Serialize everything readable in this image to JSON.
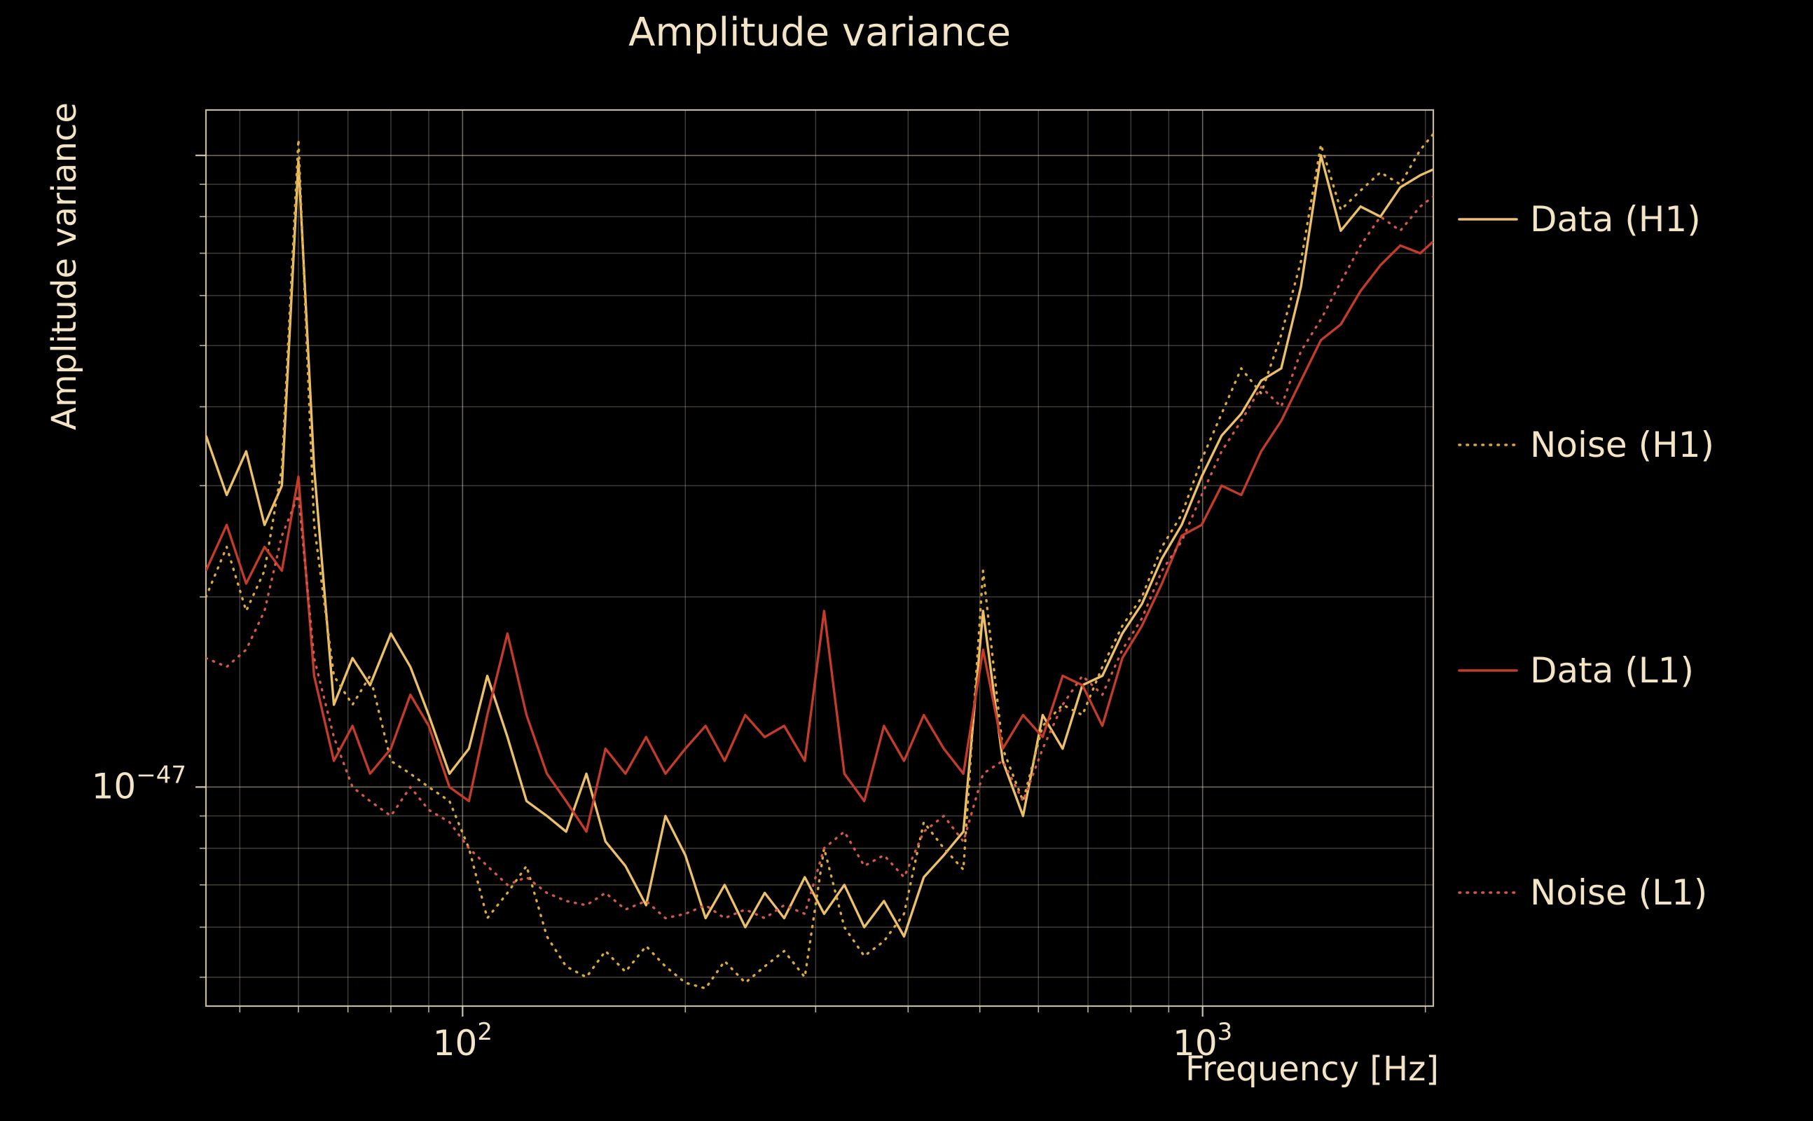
{
  "chart_data": {
    "type": "line",
    "title": "Amplitude variance",
    "xlabel": "Frequency [Hz]",
    "ylabel": "Amplitude variance",
    "x_scale": "log",
    "y_scale": "log",
    "xlim_hz": [
      45,
      2050
    ],
    "ylim": [
      4.5e-48,
      1.18e-46
    ],
    "ylim_x1e47": [
      0.45,
      11.8
    ],
    "value_unit": "1e-47 (all series values are multiples of 1e-47)",
    "grid": true,
    "legend_position": "right-outside",
    "x_major_ticks_hz": [
      100,
      1000
    ],
    "x_major_tick_labels": [
      {
        "base": "10",
        "exp": "2"
      },
      {
        "base": "10",
        "exp": "3"
      }
    ],
    "x_minor_ticks_hz": [
      50,
      60,
      70,
      80,
      90,
      200,
      300,
      400,
      500,
      600,
      700,
      800,
      900,
      2000
    ],
    "y_major_ticks_x1e47": [
      1,
      10
    ],
    "y_major_tick_label": {
      "base": "10",
      "exp": "−47",
      "value_x1e47": 1
    },
    "y_minor_ticks_x1e47": [
      0.5,
      0.6,
      0.7,
      0.8,
      0.9,
      2,
      3,
      4,
      5,
      6,
      7,
      8,
      9
    ],
    "colors": {
      "background": "#000000",
      "text": "#f2e4c4",
      "grid": "#f2e4c4",
      "frame": "#d8ccb4"
    },
    "frequencies_hz": [
      45,
      48,
      51,
      54,
      57,
      60,
      63,
      67,
      71,
      75,
      80,
      85,
      90,
      96,
      102,
      108,
      115,
      122,
      130,
      138,
      147,
      156,
      166,
      177,
      188,
      200,
      213,
      226,
      241,
      256,
      272,
      290,
      308,
      328,
      349,
      371,
      395,
      420,
      447,
      475,
      505,
      537,
      572,
      608,
      647,
      688,
      732,
      779,
      828,
      881,
      937,
      997,
      1061,
      1128,
      1200,
      1277,
      1358,
      1445,
      1537,
      1635,
      1739,
      1850,
      1968,
      2048
    ],
    "series": [
      {
        "name": "Data (H1)",
        "color": "#ecc06a",
        "style": "solid",
        "values_x1e47": [
          3.6,
          2.9,
          3.4,
          2.6,
          3.0,
          9.8,
          3.2,
          1.35,
          1.6,
          1.45,
          1.75,
          1.55,
          1.3,
          1.05,
          1.15,
          1.5,
          1.2,
          0.95,
          0.9,
          0.85,
          1.05,
          0.82,
          0.75,
          0.65,
          0.9,
          0.78,
          0.62,
          0.7,
          0.6,
          0.68,
          0.62,
          0.72,
          0.63,
          0.7,
          0.6,
          0.66,
          0.58,
          0.72,
          0.78,
          0.85,
          1.9,
          1.1,
          0.9,
          1.3,
          1.15,
          1.45,
          1.5,
          1.75,
          1.95,
          2.3,
          2.6,
          3.1,
          3.6,
          3.9,
          4.4,
          4.6,
          6.2,
          10.0,
          7.6,
          8.3,
          8.0,
          8.9,
          9.3,
          9.5
        ]
      },
      {
        "name": "Noise (H1)",
        "color": "#d9a93c",
        "style": "dotted",
        "values_x1e47": [
          2.0,
          2.4,
          1.9,
          2.2,
          3.2,
          10.6,
          2.6,
          1.5,
          1.35,
          1.5,
          1.1,
          1.05,
          1.0,
          0.95,
          0.8,
          0.62,
          0.68,
          0.75,
          0.58,
          0.52,
          0.5,
          0.55,
          0.51,
          0.56,
          0.52,
          0.49,
          0.48,
          0.53,
          0.49,
          0.52,
          0.55,
          0.5,
          0.8,
          0.6,
          0.54,
          0.57,
          0.63,
          0.88,
          0.8,
          0.74,
          2.2,
          1.15,
          0.95,
          1.25,
          1.35,
          1.3,
          1.55,
          1.8,
          2.0,
          2.4,
          2.7,
          3.3,
          3.9,
          4.6,
          4.2,
          5.2,
          6.8,
          10.4,
          8.2,
          8.8,
          9.4,
          9.0,
          10.2,
          10.8
        ]
      },
      {
        "name": "Data (L1)",
        "color": "#c23b2b",
        "style": "solid",
        "values_x1e47": [
          2.2,
          2.6,
          2.1,
          2.4,
          2.2,
          3.1,
          1.5,
          1.1,
          1.25,
          1.05,
          1.15,
          1.4,
          1.25,
          1.0,
          0.95,
          1.3,
          1.75,
          1.3,
          1.05,
          0.95,
          0.85,
          1.15,
          1.05,
          1.2,
          1.05,
          1.15,
          1.25,
          1.1,
          1.3,
          1.2,
          1.25,
          1.1,
          1.9,
          1.05,
          0.95,
          1.25,
          1.1,
          1.3,
          1.15,
          1.05,
          1.65,
          1.15,
          1.3,
          1.2,
          1.5,
          1.45,
          1.25,
          1.6,
          1.8,
          2.1,
          2.5,
          2.6,
          3.0,
          2.9,
          3.4,
          3.8,
          4.4,
          5.1,
          5.4,
          6.1,
          6.7,
          7.2,
          7.0,
          7.3
        ]
      },
      {
        "name": "Noise (L1)",
        "color": "#d2594a",
        "style": "dotted",
        "values_x1e47": [
          1.6,
          1.55,
          1.65,
          1.9,
          2.5,
          2.9,
          1.6,
          1.2,
          1.0,
          0.95,
          0.9,
          1.0,
          0.92,
          0.88,
          0.8,
          0.75,
          0.7,
          0.72,
          0.68,
          0.66,
          0.65,
          0.68,
          0.64,
          0.66,
          0.62,
          0.63,
          0.65,
          0.62,
          0.64,
          0.62,
          0.65,
          0.63,
          0.8,
          0.85,
          0.75,
          0.78,
          0.72,
          0.85,
          0.9,
          0.82,
          1.05,
          1.1,
          0.95,
          1.15,
          1.35,
          1.5,
          1.4,
          1.65,
          1.85,
          2.2,
          2.45,
          2.9,
          3.4,
          3.8,
          4.3,
          4.0,
          4.9,
          5.5,
          6.3,
          7.2,
          8.0,
          7.6,
          8.3,
          8.6
        ]
      }
    ]
  }
}
